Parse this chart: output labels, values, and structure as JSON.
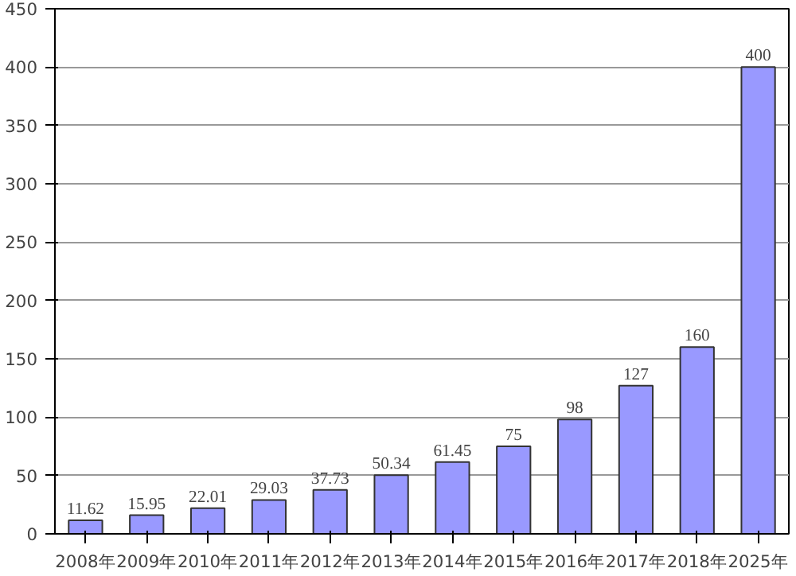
{
  "chart_data": {
    "type": "bar",
    "categories": [
      "2008年",
      "2009年",
      "2010年",
      "2011年",
      "2012年",
      "2013年",
      "2014年",
      "2015年",
      "2016年",
      "2017年",
      "2018年",
      "2025年"
    ],
    "values": [
      11.62,
      15.95,
      22.01,
      29.03,
      37.73,
      50.34,
      61.45,
      75,
      98,
      127,
      160,
      400
    ],
    "color": "#9999ff",
    "ylim": [
      0,
      450
    ],
    "yticks": [
      0,
      50,
      100,
      150,
      200,
      250,
      300,
      350,
      400,
      450
    ],
    "grid": "y",
    "data_labels": true
  }
}
